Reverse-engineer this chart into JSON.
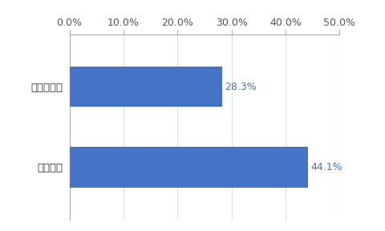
{
  "categories": [
    "対面証券",
    "ネット証券"
  ],
  "values": [
    28.3,
    44.1
  ],
  "labels": [
    "28.3%",
    "44.1%"
  ],
  "bar_color": "#4472C4",
  "background_color": "#FFFFFF",
  "xlim": [
    0,
    50
  ],
  "xtick_values": [
    0,
    10,
    20,
    30,
    40,
    50
  ],
  "xtick_labels": [
    "0.0%",
    "10.0%",
    "20.0%",
    "30.0%",
    "40.0%",
    "50.0%"
  ],
  "tick_fontsize": 9,
  "label_fontsize": 9,
  "ytick_fontsize": 9.5,
  "bar_height": 0.5,
  "label_color": "#4472C4",
  "spine_color": "#AAAAAA",
  "grid_color": "#DDDDDD"
}
